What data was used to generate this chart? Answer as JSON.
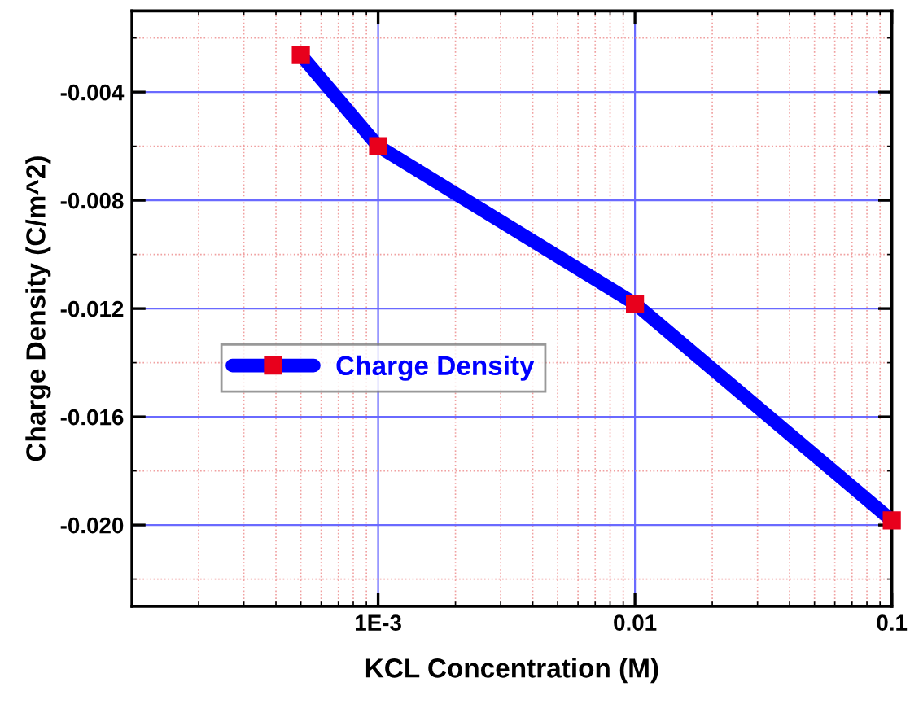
{
  "chart_data": {
    "type": "line",
    "xlabel": "KCL Concentration (M)",
    "ylabel": "Charge Density (C/m^2)",
    "x": [
      0.0005,
      0.001,
      0.01,
      0.1
    ],
    "series": [
      {
        "name": "Charge Density",
        "color": "#0000ff",
        "values": [
          -0.00263,
          -0.006,
          -0.01182,
          -0.01983
        ]
      }
    ],
    "log": "x",
    "xlim": [
      0.00011,
      0.1
    ],
    "xticks": [
      {
        "value": 0.0002,
        "label": null
      },
      {
        "value": 0.0003,
        "label": null
      },
      {
        "value": 0.0004,
        "label": null
      },
      {
        "value": 0.0005,
        "label": null
      },
      {
        "value": 0.0006,
        "label": null
      },
      {
        "value": 0.0007,
        "label": null
      },
      {
        "value": 0.0008,
        "label": null
      },
      {
        "value": 0.0009,
        "label": null
      },
      {
        "value": 0.001,
        "label": "1E-3"
      },
      {
        "value": 0.002,
        "label": null
      },
      {
        "value": 0.003,
        "label": null
      },
      {
        "value": 0.004,
        "label": null
      },
      {
        "value": 0.005,
        "label": null
      },
      {
        "value": 0.006,
        "label": null
      },
      {
        "value": 0.007,
        "label": null
      },
      {
        "value": 0.008,
        "label": null
      },
      {
        "value": 0.009,
        "label": null
      },
      0.01,
      {
        "value": 0.02,
        "label": null
      },
      {
        "value": 0.03,
        "label": null
      },
      {
        "value": 0.04,
        "label": null
      },
      {
        "value": 0.05,
        "label": null
      },
      {
        "value": 0.06,
        "label": null
      },
      {
        "value": 0.07,
        "label": null
      },
      {
        "value": 0.08,
        "label": null
      },
      {
        "value": 0.09,
        "label": null
      },
      0.1
    ],
    "ylim": [
      -0.023,
      -0.001
    ],
    "yticks": [
      {
        "value": -0.002,
        "label": null
      },
      -0.004,
      {
        "value": -0.006,
        "label": null
      },
      -0.008,
      {
        "value": -0.01,
        "label": null
      },
      -0.012,
      {
        "value": -0.014,
        "label": null
      },
      -0.016,
      {
        "value": -0.018,
        "label": null
      },
      {
        "value": -0.02,
        "label": "-0.020"
      },
      {
        "value": -0.022,
        "label": null
      }
    ],
    "grid": true,
    "legend": "left",
    "marker": "square",
    "line_style": "solid"
  }
}
